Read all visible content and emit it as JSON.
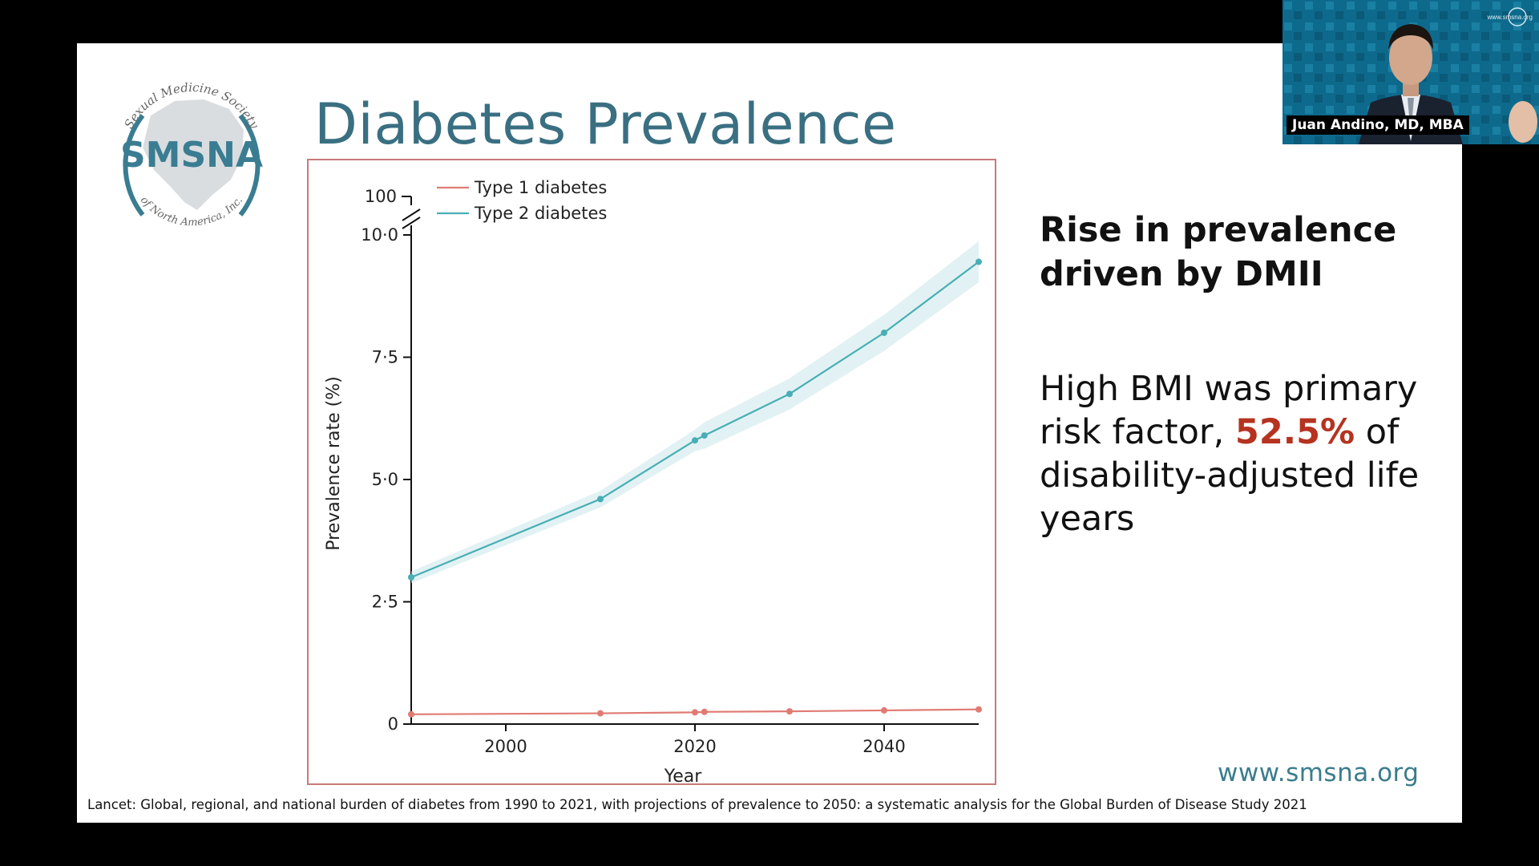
{
  "slide": {
    "title": "Diabetes Prevalence",
    "logo": {
      "arc_top": "Sexual Medicine Society",
      "name": "SMSNA",
      "arc_bottom": "of North America, Inc."
    },
    "point_title": "Rise in prevalence driven by DMII",
    "point_body_before": "High BMI was primary risk factor, ",
    "point_body_highlight": "52.5%",
    "point_body_after": " of disability-adjusted life years",
    "website": "www.smsna.org",
    "citation": "Lancet: Global, regional, and national burden of diabetes from 1990 to 2021, with projections of prevalence to 2050: a systematic analysis for the Global Burden of Disease Study 2021",
    "highlight_color": "#b5331f"
  },
  "video": {
    "speaker": "Juan Andino, MD, MBA",
    "site": "www.smsna.org"
  },
  "chart_data": {
    "type": "line",
    "title": "",
    "xlabel": "Year",
    "ylabel": "Prevalence rate (%)",
    "xlim": [
      1990,
      2050
    ],
    "ylim": [
      0,
      10
    ],
    "xticks": [
      2000,
      2020,
      2040
    ],
    "yticks": [
      {
        "value": 0,
        "label": "0"
      },
      {
        "value": 2.5,
        "label": "2·5"
      },
      {
        "value": 5.0,
        "label": "5·0"
      },
      {
        "value": 7.5,
        "label": "7·5"
      },
      {
        "value": 10.0,
        "label": "10·0"
      }
    ],
    "axis_break_label": "100",
    "series": [
      {
        "name": "Type 1 diabetes",
        "color": "#e07b73",
        "x": [
          1990,
          2010,
          2020,
          2021,
          2030,
          2040,
          2050
        ],
        "values": [
          0.2,
          0.22,
          0.24,
          0.25,
          0.26,
          0.28,
          0.3
        ]
      },
      {
        "name": "Type 2 diabetes",
        "color": "#49aeb5",
        "x": [
          1990,
          2010,
          2020,
          2021,
          2030,
          2040,
          2050
        ],
        "values": [
          3.0,
          4.6,
          5.8,
          5.9,
          6.75,
          8.0,
          9.45
        ]
      }
    ]
  }
}
